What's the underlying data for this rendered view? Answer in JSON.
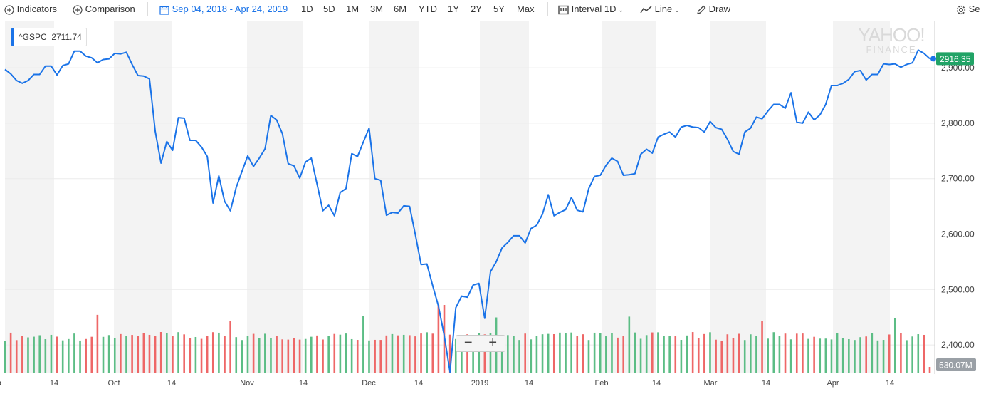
{
  "toolbar": {
    "indicators": "Indicators",
    "comparison": "Comparison",
    "date_range": "Sep 04, 2018 - Apr 24, 2019",
    "ranges": [
      "1D",
      "5D",
      "1M",
      "3M",
      "6M",
      "YTD",
      "1Y",
      "2Y",
      "5Y",
      "Max"
    ],
    "interval_label": "Interval",
    "interval_value": "1D",
    "line_label": "Line",
    "draw_label": "Draw",
    "settings_label": "Se"
  },
  "legend": {
    "symbol": "^GSPC",
    "value": "2711.74"
  },
  "logo": {
    "line1": "YAHOO!",
    "line2": "FINANCE"
  },
  "zoom": {
    "minus": "−",
    "plus": "+"
  },
  "colors": {
    "line": "#1a73e8",
    "up": "#5cbd85",
    "down": "#ee6767",
    "price_tag": "#21a366",
    "volume_tag": "#9aa0a6",
    "band": "#f3f3f3"
  },
  "chart_data": {
    "type": "line",
    "title": "",
    "ylabel": "",
    "ylim": [
      2350,
      2985
    ],
    "yticks": [
      "2,400.00",
      "2,500.00",
      "2,600.00",
      "2,700.00",
      "2,800.00",
      "2,900.00"
    ],
    "xticks": [
      "Sep",
      "14",
      "Oct",
      "14",
      "Nov",
      "14",
      "Dec",
      "14",
      "2019",
      "14",
      "Feb",
      "14",
      "Mar",
      "14",
      "Apr",
      "14"
    ],
    "last_price": "2916.35",
    "last_volume": "530.07M",
    "series": [
      {
        "values": [
          2897,
          2889,
          2877,
          2872,
          2877,
          2888,
          2888,
          2903,
          2903,
          2887,
          2904,
          2907,
          2930,
          2930,
          2921,
          2918,
          2909,
          2915,
          2916,
          2926,
          2925,
          2928,
          2906,
          2886,
          2885,
          2880,
          2785,
          2728,
          2767,
          2751,
          2810,
          2809,
          2769,
          2769,
          2757,
          2740,
          2656,
          2705,
          2659,
          2642,
          2684,
          2713,
          2741,
          2722,
          2737,
          2754,
          2814,
          2806,
          2781,
          2727,
          2723,
          2701,
          2730,
          2737,
          2690,
          2642,
          2652,
          2633,
          2675,
          2682,
          2745,
          2740,
          2766,
          2791,
          2700,
          2697,
          2634,
          2639,
          2638,
          2651,
          2650,
          2599,
          2545,
          2546,
          2507,
          2470,
          2417,
          2351,
          2467,
          2488,
          2486,
          2508,
          2511,
          2448,
          2532,
          2550,
          2575,
          2585,
          2597,
          2597,
          2584,
          2610,
          2616,
          2636,
          2671,
          2633,
          2639,
          2644,
          2666,
          2643,
          2640,
          2682,
          2704,
          2706,
          2724,
          2737,
          2731,
          2706,
          2707,
          2709,
          2744,
          2753,
          2746,
          2775,
          2780,
          2784,
          2775,
          2793,
          2796,
          2793,
          2792,
          2784,
          2803,
          2792,
          2789,
          2771,
          2749,
          2744,
          2784,
          2791,
          2811,
          2808,
          2822,
          2834,
          2834,
          2827,
          2855,
          2802,
          2800,
          2820,
          2806,
          2815,
          2834,
          2868,
          2868,
          2872,
          2879,
          2893,
          2895,
          2878,
          2888,
          2888,
          2907,
          2906,
          2907,
          2901,
          2906,
          2909,
          2932,
          2926,
          2916.35
        ]
      }
    ]
  }
}
